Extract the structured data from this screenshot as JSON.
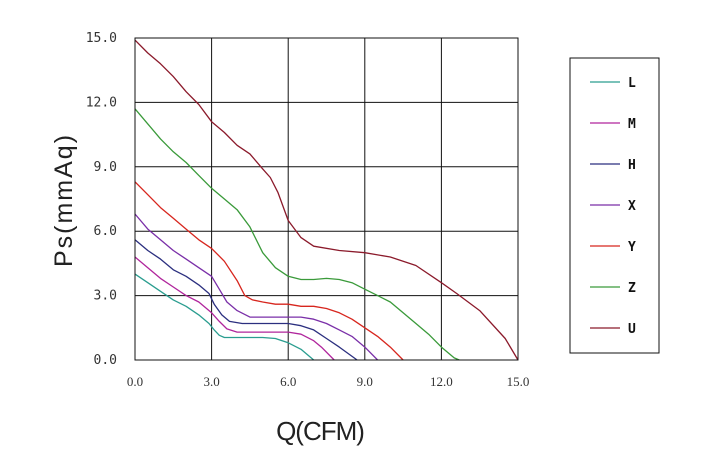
{
  "chart_data": {
    "type": "line",
    "title": "",
    "xlabel": "Q(CFM)",
    "ylabel": "Ps(mmAq)",
    "xlim": [
      0,
      15
    ],
    "ylim": [
      0,
      15
    ],
    "xticks": [
      "0.0",
      "3.0",
      "6.0",
      "9.0",
      "12.0",
      "15.0"
    ],
    "yticks": [
      "0.0",
      "3.0",
      "6.0",
      "9.0",
      "12.0",
      "15.0"
    ],
    "grid": true,
    "legend_position": "right",
    "series": [
      {
        "name": "L",
        "color": "#2a9d8f",
        "x": [
          0,
          0.5,
          1.0,
          1.5,
          2.0,
          2.5,
          2.9,
          3.1,
          3.3,
          3.5,
          4.0,
          4.5,
          5.0,
          5.5,
          6.0,
          6.5,
          7.0
        ],
        "y": [
          4.0,
          3.6,
          3.2,
          2.8,
          2.5,
          2.1,
          1.7,
          1.4,
          1.15,
          1.05,
          1.05,
          1.05,
          1.05,
          1.0,
          0.8,
          0.5,
          0.0
        ]
      },
      {
        "name": "M",
        "color": "#b0259c",
        "x": [
          0,
          0.5,
          1.0,
          1.5,
          2.0,
          2.5,
          3.0,
          3.3,
          3.6,
          4.0,
          4.5,
          5.0,
          5.5,
          6.0,
          6.5,
          7.0,
          7.3,
          7.8
        ],
        "y": [
          4.8,
          4.3,
          3.8,
          3.4,
          3.0,
          2.7,
          2.2,
          1.8,
          1.45,
          1.3,
          1.3,
          1.3,
          1.3,
          1.3,
          1.2,
          0.9,
          0.6,
          0.0
        ]
      },
      {
        "name": "H",
        "color": "#2b2f7f",
        "x": [
          0,
          0.5,
          1.0,
          1.5,
          2.0,
          2.5,
          2.9,
          3.1,
          3.4,
          3.7,
          4.2,
          4.5,
          5.0,
          5.5,
          6.0,
          6.5,
          7.0,
          7.5,
          8.0,
          8.7
        ],
        "y": [
          5.6,
          5.1,
          4.7,
          4.2,
          3.9,
          3.5,
          3.1,
          2.6,
          2.1,
          1.8,
          1.7,
          1.7,
          1.7,
          1.7,
          1.7,
          1.6,
          1.4,
          1.0,
          0.6,
          0.0
        ]
      },
      {
        "name": "X",
        "color": "#7a2fa8",
        "x": [
          0,
          0.5,
          1.0,
          1.5,
          2.0,
          2.5,
          3.0,
          3.3,
          3.6,
          4.0,
          4.5,
          5.0,
          5.5,
          6.0,
          6.5,
          7.0,
          7.5,
          8.0,
          8.5,
          9.0,
          9.5
        ],
        "y": [
          6.8,
          6.1,
          5.6,
          5.1,
          4.7,
          4.3,
          3.9,
          3.3,
          2.7,
          2.3,
          2.0,
          2.0,
          2.0,
          2.0,
          2.0,
          1.9,
          1.7,
          1.4,
          1.1,
          0.6,
          0.0
        ]
      },
      {
        "name": "Y",
        "color": "#d7261e",
        "x": [
          0,
          0.5,
          1.0,
          1.5,
          2.0,
          2.5,
          3.0,
          3.5,
          4.0,
          4.3,
          4.6,
          5.0,
          5.5,
          6.0,
          6.5,
          7.0,
          7.5,
          8.0,
          8.5,
          9.0,
          9.5,
          10.0,
          10.5
        ],
        "y": [
          8.3,
          7.7,
          7.1,
          6.6,
          6.1,
          5.6,
          5.2,
          4.6,
          3.7,
          3.0,
          2.8,
          2.7,
          2.6,
          2.6,
          2.5,
          2.5,
          2.4,
          2.2,
          1.9,
          1.5,
          1.1,
          0.6,
          0.0
        ]
      },
      {
        "name": "Z",
        "color": "#3a9a3a",
        "x": [
          0,
          0.5,
          1.0,
          1.5,
          2.0,
          2.5,
          3.0,
          3.5,
          4.0,
          4.5,
          5.0,
          5.5,
          6.0,
          6.5,
          7.0,
          7.5,
          8.0,
          8.5,
          9.0,
          9.5,
          10.0,
          10.5,
          11.0,
          11.5,
          12.0,
          12.5,
          12.7
        ],
        "y": [
          11.7,
          11.0,
          10.3,
          9.7,
          9.2,
          8.6,
          8.0,
          7.5,
          7.0,
          6.2,
          5.0,
          4.3,
          3.9,
          3.75,
          3.75,
          3.8,
          3.75,
          3.6,
          3.3,
          3.0,
          2.7,
          2.2,
          1.7,
          1.2,
          0.6,
          0.1,
          0.0
        ]
      },
      {
        "name": "U",
        "color": "#8b1a2b",
        "x": [
          0,
          0.5,
          1.0,
          1.5,
          2.0,
          2.5,
          3.0,
          3.5,
          4.0,
          4.5,
          5.0,
          5.3,
          5.6,
          6.0,
          6.5,
          7.0,
          8.0,
          9.0,
          10.0,
          11.0,
          12.0,
          12.6,
          13.5,
          14.5,
          15.0
        ],
        "y": [
          14.9,
          14.3,
          13.8,
          13.2,
          12.5,
          11.9,
          11.1,
          10.6,
          10.0,
          9.6,
          8.9,
          8.5,
          7.8,
          6.5,
          5.7,
          5.3,
          5.1,
          5.0,
          4.8,
          4.4,
          3.6,
          3.1,
          2.3,
          1.0,
          0.0
        ]
      }
    ]
  }
}
